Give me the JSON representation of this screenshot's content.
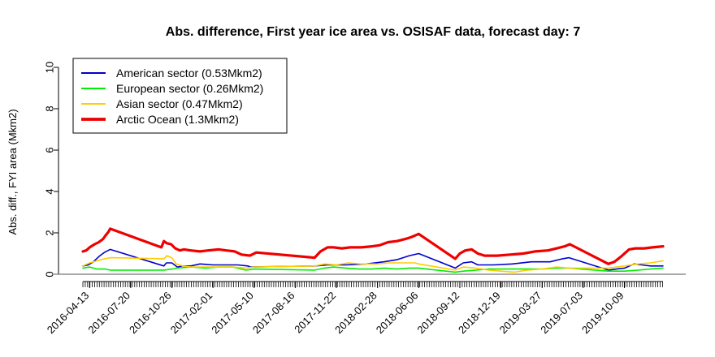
{
  "chart_data": {
    "type": "line",
    "title": "Abs. difference, First year ice area vs. OSISAF data, forecast day: 7",
    "xlabel": "",
    "ylabel": "Abs. diff., FYI area (Mkm2)",
    "ylim": [
      0,
      10
    ],
    "yticks": [
      0,
      2,
      4,
      6,
      8,
      10
    ],
    "xlim": [
      "2016-03-28",
      "2020-01-09"
    ],
    "xtick_labels": [
      "2016-04-13",
      "2016-07-20",
      "2016-10-26",
      "2017-02-01",
      "2017-05-10",
      "2017-08-16",
      "2017-11-22",
      "2018-02-28",
      "2018-06-06",
      "2018-09-12",
      "2018-12-19",
      "2019-03-27",
      "2019-07-03",
      "2019-10-09"
    ],
    "grid": false,
    "legend_position": "top-left",
    "reference_line": 0,
    "series": [
      {
        "name": "American sector (0.53Mkm2)",
        "color": "#0000cc",
        "points": [
          [
            "2016-03-28",
            0.4
          ],
          [
            "2016-04-10",
            0.45
          ],
          [
            "2016-04-22",
            0.6
          ],
          [
            "2016-05-05",
            0.85
          ],
          [
            "2016-05-18",
            1.05
          ],
          [
            "2016-06-01",
            1.2
          ],
          [
            "2016-10-07",
            0.4
          ],
          [
            "2016-10-13",
            0.55
          ],
          [
            "2016-10-26",
            0.55
          ],
          [
            "2016-11-08",
            0.35
          ],
          [
            "2016-11-21",
            0.4
          ],
          [
            "2016-12-10",
            0.4
          ],
          [
            "2017-01-01",
            0.5
          ],
          [
            "2017-02-01",
            0.45
          ],
          [
            "2017-03-01",
            0.45
          ],
          [
            "2017-04-01",
            0.45
          ],
          [
            "2017-04-25",
            0.4
          ],
          [
            "2017-05-01",
            0.35
          ],
          [
            "2017-10-01",
            0.4
          ],
          [
            "2017-11-01",
            0.45
          ],
          [
            "2017-12-15",
            0.45
          ],
          [
            "2018-02-01",
            0.5
          ],
          [
            "2018-03-15",
            0.6
          ],
          [
            "2018-04-15",
            0.7
          ],
          [
            "2018-05-15",
            0.9
          ],
          [
            "2018-06-06",
            1.0
          ],
          [
            "2018-09-01",
            0.3
          ],
          [
            "2018-09-20",
            0.55
          ],
          [
            "2018-10-10",
            0.6
          ],
          [
            "2018-10-25",
            0.45
          ],
          [
            "2018-12-01",
            0.45
          ],
          [
            "2019-01-15",
            0.5
          ],
          [
            "2019-03-01",
            0.6
          ],
          [
            "2019-04-15",
            0.6
          ],
          [
            "2019-05-15",
            0.75
          ],
          [
            "2019-05-30",
            0.8
          ],
          [
            "2019-09-01",
            0.2
          ],
          [
            "2019-09-20",
            0.25
          ],
          [
            "2019-10-10",
            0.3
          ],
          [
            "2019-11-01",
            0.5
          ],
          [
            "2019-11-20",
            0.45
          ],
          [
            "2019-12-10",
            0.4
          ],
          [
            "2020-01-09",
            0.4
          ]
        ]
      },
      {
        "name": "European sector (0.26Mkm2)",
        "color": "#00ee00",
        "points": [
          [
            "2016-03-28",
            0.3
          ],
          [
            "2016-04-13",
            0.35
          ],
          [
            "2016-05-01",
            0.25
          ],
          [
            "2016-05-20",
            0.25
          ],
          [
            "2016-06-01",
            0.2
          ],
          [
            "2016-10-07",
            0.2
          ],
          [
            "2016-10-26",
            0.25
          ],
          [
            "2016-11-08",
            0.3
          ],
          [
            "2016-12-10",
            0.35
          ],
          [
            "2017-01-15",
            0.3
          ],
          [
            "2017-02-15",
            0.35
          ],
          [
            "2017-03-20",
            0.35
          ],
          [
            "2017-04-20",
            0.2
          ],
          [
            "2017-05-10",
            0.25
          ],
          [
            "2017-10-01",
            0.2
          ],
          [
            "2017-10-25",
            0.3
          ],
          [
            "2017-11-15",
            0.35
          ],
          [
            "2017-12-15",
            0.3
          ],
          [
            "2018-01-15",
            0.25
          ],
          [
            "2018-02-15",
            0.25
          ],
          [
            "2018-03-15",
            0.3
          ],
          [
            "2018-04-15",
            0.25
          ],
          [
            "2018-05-15",
            0.3
          ],
          [
            "2018-06-06",
            0.3
          ],
          [
            "2018-09-01",
            0.1
          ],
          [
            "2018-09-20",
            0.15
          ],
          [
            "2018-10-20",
            0.2
          ],
          [
            "2018-11-20",
            0.25
          ],
          [
            "2018-12-19",
            0.25
          ],
          [
            "2019-01-20",
            0.25
          ],
          [
            "2019-02-20",
            0.25
          ],
          [
            "2019-03-27",
            0.25
          ],
          [
            "2019-05-01",
            0.3
          ],
          [
            "2019-05-30",
            0.3
          ],
          [
            "2019-09-01",
            0.15
          ],
          [
            "2019-10-09",
            0.15
          ],
          [
            "2019-11-10",
            0.2
          ],
          [
            "2019-12-10",
            0.25
          ],
          [
            "2020-01-09",
            0.3
          ]
        ]
      },
      {
        "name": "Asian sector (0.47Mkm2)",
        "color": "#ffcc00",
        "points": [
          [
            "2016-03-28",
            0.4
          ],
          [
            "2016-04-13",
            0.55
          ],
          [
            "2016-05-01",
            0.65
          ],
          [
            "2016-05-20",
            0.75
          ],
          [
            "2016-06-01",
            0.8
          ],
          [
            "2016-10-07",
            0.75
          ],
          [
            "2016-10-14",
            0.9
          ],
          [
            "2016-10-26",
            0.8
          ],
          [
            "2016-11-05",
            0.5
          ],
          [
            "2016-11-21",
            0.4
          ],
          [
            "2016-12-10",
            0.35
          ],
          [
            "2017-01-15",
            0.35
          ],
          [
            "2017-02-15",
            0.35
          ],
          [
            "2017-03-20",
            0.35
          ],
          [
            "2017-04-20",
            0.3
          ],
          [
            "2017-05-10",
            0.35
          ],
          [
            "2017-10-01",
            0.4
          ],
          [
            "2017-10-25",
            0.5
          ],
          [
            "2017-11-22",
            0.45
          ],
          [
            "2017-12-20",
            0.55
          ],
          [
            "2018-01-20",
            0.5
          ],
          [
            "2018-02-28",
            0.5
          ],
          [
            "2018-03-28",
            0.55
          ],
          [
            "2018-04-28",
            0.55
          ],
          [
            "2018-05-28",
            0.55
          ],
          [
            "2018-06-06",
            0.5
          ],
          [
            "2018-09-01",
            0.2
          ],
          [
            "2018-09-20",
            0.35
          ],
          [
            "2018-10-20",
            0.3
          ],
          [
            "2018-11-20",
            0.2
          ],
          [
            "2018-12-19",
            0.15
          ],
          [
            "2019-01-20",
            0.1
          ],
          [
            "2019-02-20",
            0.2
          ],
          [
            "2019-03-27",
            0.25
          ],
          [
            "2019-05-01",
            0.35
          ],
          [
            "2019-05-30",
            0.3
          ],
          [
            "2019-09-01",
            0.3
          ],
          [
            "2019-10-09",
            0.4
          ],
          [
            "2019-11-10",
            0.5
          ],
          [
            "2019-12-10",
            0.55
          ],
          [
            "2020-01-09",
            0.65
          ]
        ]
      },
      {
        "name": "Arctic Ocean (1.3Mkm2)",
        "color": "#ee0000",
        "points": [
          [
            "2016-03-28",
            1.1
          ],
          [
            "2016-04-05",
            1.15
          ],
          [
            "2016-04-13",
            1.3
          ],
          [
            "2016-04-25",
            1.45
          ],
          [
            "2016-05-05",
            1.55
          ],
          [
            "2016-05-15",
            1.7
          ],
          [
            "2016-05-22",
            1.9
          ],
          [
            "2016-05-28",
            2.05
          ],
          [
            "2016-06-01",
            2.2
          ],
          [
            "2016-10-01",
            1.3
          ],
          [
            "2016-10-07",
            1.6
          ],
          [
            "2016-10-14",
            1.5
          ],
          [
            "2016-10-24",
            1.45
          ],
          [
            "2016-11-03",
            1.25
          ],
          [
            "2016-11-14",
            1.15
          ],
          [
            "2016-11-24",
            1.2
          ],
          [
            "2016-12-10",
            1.15
          ],
          [
            "2017-01-01",
            1.1
          ],
          [
            "2017-01-20",
            1.15
          ],
          [
            "2017-02-15",
            1.2
          ],
          [
            "2017-03-05",
            1.15
          ],
          [
            "2017-03-25",
            1.1
          ],
          [
            "2017-04-10",
            0.95
          ],
          [
            "2017-04-30",
            0.9
          ],
          [
            "2017-05-15",
            1.05
          ],
          [
            "2017-10-01",
            0.8
          ],
          [
            "2017-10-15",
            1.1
          ],
          [
            "2017-11-01",
            1.3
          ],
          [
            "2017-11-15",
            1.3
          ],
          [
            "2017-12-05",
            1.25
          ],
          [
            "2017-12-25",
            1.3
          ],
          [
            "2018-01-20",
            1.3
          ],
          [
            "2018-02-15",
            1.35
          ],
          [
            "2018-03-05",
            1.4
          ],
          [
            "2018-03-25",
            1.55
          ],
          [
            "2018-04-15",
            1.6
          ],
          [
            "2018-05-05",
            1.7
          ],
          [
            "2018-05-20",
            1.8
          ],
          [
            "2018-06-06",
            1.95
          ],
          [
            "2018-09-01",
            0.75
          ],
          [
            "2018-09-12",
            1.0
          ],
          [
            "2018-09-25",
            1.15
          ],
          [
            "2018-10-10",
            1.2
          ],
          [
            "2018-10-25",
            1.0
          ],
          [
            "2018-11-10",
            0.9
          ],
          [
            "2018-12-10",
            0.9
          ],
          [
            "2019-01-10",
            0.95
          ],
          [
            "2019-02-10",
            1.0
          ],
          [
            "2019-03-10",
            1.1
          ],
          [
            "2019-04-10",
            1.15
          ],
          [
            "2019-05-01",
            1.25
          ],
          [
            "2019-05-20",
            1.35
          ],
          [
            "2019-06-01",
            1.45
          ],
          [
            "2019-09-01",
            0.5
          ],
          [
            "2019-09-15",
            0.6
          ],
          [
            "2019-10-01",
            0.85
          ],
          [
            "2019-10-20",
            1.2
          ],
          [
            "2019-11-05",
            1.25
          ],
          [
            "2019-11-25",
            1.25
          ],
          [
            "2019-12-15",
            1.3
          ],
          [
            "2020-01-09",
            1.35
          ]
        ]
      }
    ]
  }
}
